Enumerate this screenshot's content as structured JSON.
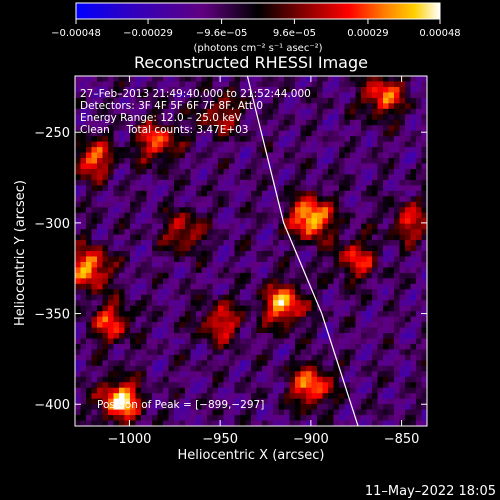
{
  "chart_data": {
    "type": "heatmap",
    "title": "Reconstructed RHESSI Image",
    "xlabel": "Heliocentric X (arcsec)",
    "ylabel": "Heliocentric Y (arcsec)",
    "xlim": [
      -1030,
      -836
    ],
    "ylim": [
      -412,
      -219
    ],
    "x_ticks": [
      -1000,
      -950,
      -900,
      -850
    ],
    "x_tick_labels": [
      "−1000",
      "−950",
      "−900",
      "−850"
    ],
    "y_ticks": [
      -250,
      -300,
      -350,
      -400
    ],
    "y_tick_labels": [
      "−250",
      "−300",
      "−350",
      "−400"
    ],
    "colorbar": {
      "range": [
        -0.00048,
        0.00048
      ],
      "ticks": [
        -0.00048,
        -0.00029,
        -9.6e-05,
        9.6e-05,
        0.00029,
        0.00048
      ],
      "tick_labels": [
        "−0.00048",
        "−0.00029",
        "−9.6e−05",
        "9.6e−05",
        "0.00029",
        "0.00048"
      ],
      "unit_label": "(photons cm⁻² s⁻¹ asec⁻²)",
      "colors": [
        "#0000ff",
        "#3000c0",
        "#600080",
        "#000000",
        "#800000",
        "#ff0000",
        "#ff8000",
        "#ffd000",
        "#ffffff"
      ]
    },
    "annotations": {
      "time_range": "27–Feb–2013 21:49:40.000 to 21:52:44.000",
      "detectors": "Detectors: 3F 4F 5F 6F 7F 8F, Att 0",
      "energy_range": "Energy Range: 12.0 – 25.0 keV",
      "method_counts": "Clean     Total counts: 3.47E+03",
      "peak_position": "Position of Peak = [−899,−297]"
    },
    "limb_curve": {
      "points": [
        [
          -935,
          -219
        ],
        [
          -915,
          -300
        ],
        [
          -894,
          -350
        ],
        [
          -874,
          -412
        ]
      ]
    },
    "peak": [
      -899,
      -297
    ],
    "hotspots": [
      {
        "x": -1005,
        "y": -398,
        "strength": 1.0
      },
      {
        "x": -900,
        "y": -297,
        "strength": 1.0
      },
      {
        "x": -915,
        "y": -345,
        "strength": 0.9
      },
      {
        "x": -1022,
        "y": -325,
        "strength": 0.85
      },
      {
        "x": -985,
        "y": -255,
        "strength": 0.7
      },
      {
        "x": -860,
        "y": -230,
        "strength": 0.75
      },
      {
        "x": -900,
        "y": -390,
        "strength": 0.8
      },
      {
        "x": -950,
        "y": -355,
        "strength": 0.6
      },
      {
        "x": -1020,
        "y": -265,
        "strength": 0.7
      },
      {
        "x": -970,
        "y": -305,
        "strength": 0.55
      },
      {
        "x": -875,
        "y": -320,
        "strength": 0.6
      },
      {
        "x": -845,
        "y": -300,
        "strength": 0.55
      },
      {
        "x": -950,
        "y": -240,
        "strength": 0.5
      },
      {
        "x": -1010,
        "y": -355,
        "strength": 0.65
      }
    ]
  },
  "footer": {
    "timestamp": "11–May–2022 18:05"
  }
}
